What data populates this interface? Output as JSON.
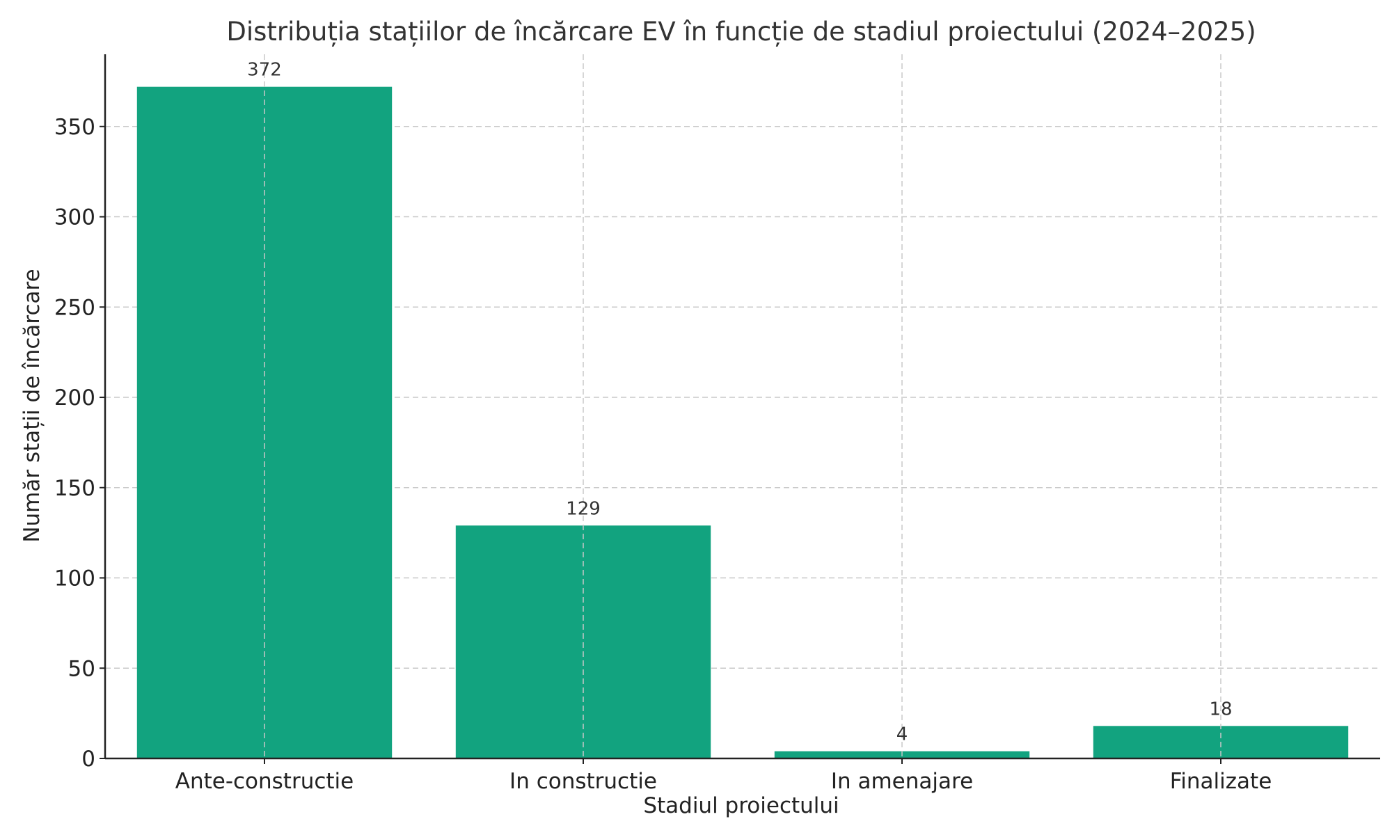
{
  "chart_data": {
    "type": "bar",
    "title": "Distribuția stațiilor de încărcare EV în funcție de stadiul proiectului (2024–2025)",
    "xlabel": "Stadiul proiectului",
    "ylabel": "Număr stații de încărcare",
    "categories": [
      "Ante-constructie",
      "In constructie",
      "In amenajare",
      "Finalizate"
    ],
    "values": [
      372,
      129,
      4,
      18
    ],
    "data_labels": [
      "372",
      "129",
      "4",
      "18"
    ],
    "ylim": [
      0,
      390
    ],
    "yticks": [
      0,
      50,
      100,
      150,
      200,
      250,
      300,
      350
    ],
    "grid": true,
    "legend": "none",
    "bar_color": "#12a37f"
  }
}
